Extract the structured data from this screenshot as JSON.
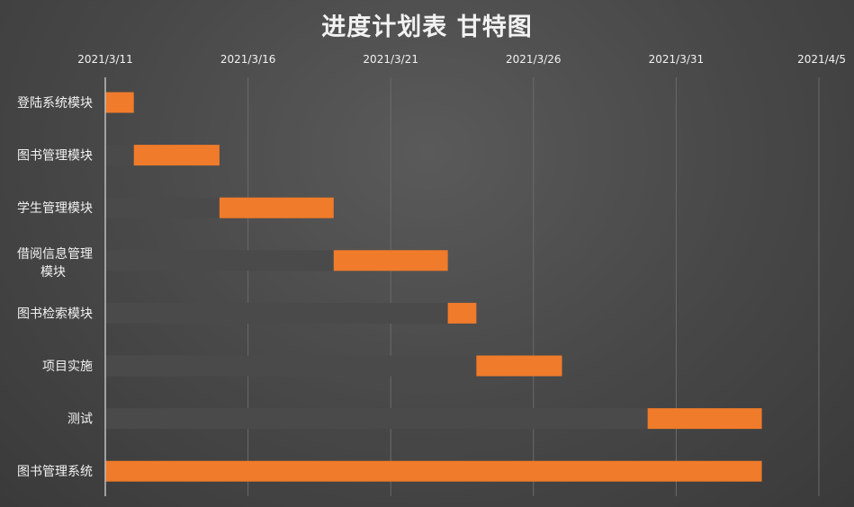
{
  "chart_data": {
    "type": "bar",
    "subtype": "gantt",
    "title": "进度计划表 甘特图",
    "x_axis": {
      "type": "date",
      "min": "2021/3/11",
      "max": "2021/4/5",
      "position": "top",
      "tick_labels": [
        "2021/3/11",
        "2021/3/16",
        "2021/3/21",
        "2021/3/26",
        "2021/3/31",
        "2021/4/5"
      ],
      "grid": true
    },
    "categories": [
      "登陆系统模块",
      "图书管理模块",
      "学生管理模块",
      "借阅信息管理模块",
      "图书检索模块",
      "项目实施",
      "测试",
      "图书管理系统"
    ],
    "series": [
      {
        "role": "start",
        "color": "#4a4a4a",
        "values": [
          "2021/3/11",
          "2021/3/12",
          "2021/3/15",
          "2021/3/19",
          "2021/3/23",
          "2021/3/24",
          "2021/3/30",
          "2021/3/11"
        ]
      },
      {
        "role": "duration",
        "color": "#f07b2a",
        "values": [
          "2021/3/12",
          "2021/3/15",
          "2021/3/19",
          "2021/3/23",
          "2021/3/24",
          "2021/3/27",
          "2021/4/3",
          "2021/4/3"
        ]
      }
    ],
    "legend": "none"
  },
  "colors": {
    "task_bar": "#f07b2a",
    "offset_bar": "#4a4a4a",
    "grid": "#6a6a6a",
    "axis": "#bfbfbf",
    "text": "#f2f2f2"
  }
}
